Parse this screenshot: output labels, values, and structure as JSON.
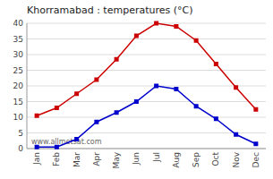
{
  "chart_data": {
    "type": "line",
    "title": "Khorramabad : temperatures (°C)",
    "categories": [
      "Jan",
      "Feb",
      "Mar",
      "Apr",
      "May",
      "Jun",
      "Jul",
      "Aug",
      "Sep",
      "Oct",
      "Nov",
      "Dec"
    ],
    "series": [
      {
        "color": "#cc0000",
        "marker": "square",
        "values": [
          10.5,
          13,
          17.5,
          22,
          28.5,
          36,
          40,
          39,
          34.5,
          27,
          19.5,
          12.5
        ]
      },
      {
        "color": "#0000cc",
        "marker": "square",
        "values": [
          0.5,
          0.5,
          3,
          8.5,
          11.5,
          15,
          20,
          19,
          13.5,
          9.5,
          4.5,
          1.5
        ]
      }
    ],
    "ylim": [
      0,
      40
    ],
    "yticks": [
      0,
      5,
      10,
      15,
      20,
      25,
      30,
      35,
      40
    ],
    "grid": true,
    "annotations": [
      "www.allmetsat.com"
    ]
  }
}
